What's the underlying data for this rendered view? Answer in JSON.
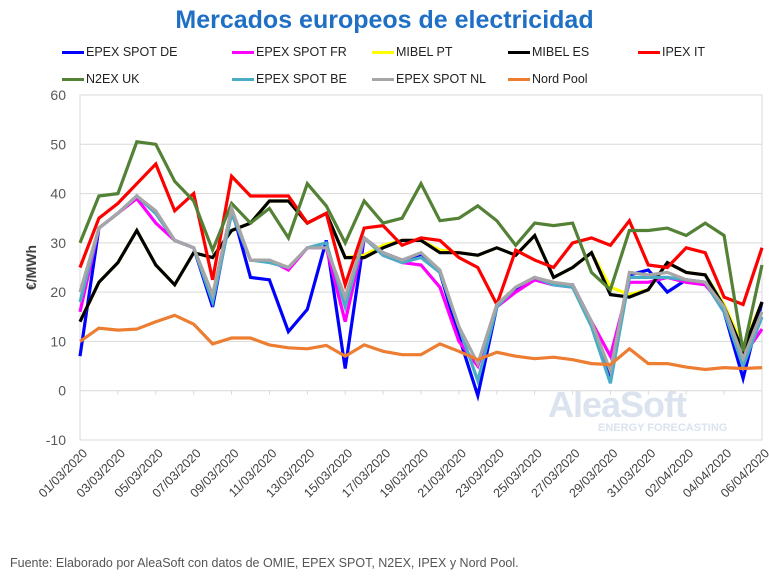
{
  "chart_data": {
    "type": "line",
    "title": "Mercados europeos de electricidad",
    "xlabel": "",
    "ylabel": "€/MWh",
    "ylim": [
      -10,
      60
    ],
    "yticks": [
      "60",
      "50",
      "40",
      "30",
      "20",
      "10",
      "0",
      "-10"
    ],
    "grid": true,
    "legend_position": "top",
    "x": [
      "01/03/2020",
      "02/03/2020",
      "03/03/2020",
      "04/03/2020",
      "05/03/2020",
      "06/03/2020",
      "07/03/2020",
      "08/03/2020",
      "09/03/2020",
      "10/03/2020",
      "11/03/2020",
      "12/03/2020",
      "13/03/2020",
      "14/03/2020",
      "15/03/2020",
      "16/03/2020",
      "17/03/2020",
      "18/03/2020",
      "19/03/2020",
      "20/03/2020",
      "21/03/2020",
      "22/03/2020",
      "23/03/2020",
      "24/03/2020",
      "25/03/2020",
      "26/03/2020",
      "27/03/2020",
      "28/03/2020",
      "29/03/2020",
      "30/03/2020",
      "31/03/2020",
      "01/04/2020",
      "02/04/2020",
      "03/04/2020",
      "04/04/2020",
      "05/04/2020",
      "06/04/2020"
    ],
    "xtick_labels": [
      "01/03/2020",
      "03/03/2020",
      "05/03/2020",
      "07/03/2020",
      "09/03/2020",
      "11/03/2020",
      "13/03/2020",
      "15/03/2020",
      "17/03/2020",
      "19/03/2020",
      "21/03/2020",
      "23/03/2020",
      "25/03/2020",
      "27/03/2020",
      "29/03/2020",
      "31/03/2020",
      "02/04/2020",
      "04/04/2020",
      "06/04/2020"
    ],
    "series": [
      {
        "name": "EPEX SPOT DE",
        "color": "#0000ff",
        "values": [
          7,
          33,
          36,
          39.5,
          36,
          30.5,
          29,
          17,
          37,
          23,
          22.5,
          12,
          16.5,
          30.5,
          4.5,
          31,
          28,
          26.5,
          27.5,
          24,
          11,
          -1,
          17,
          20.5,
          22.5,
          21.5,
          21.5,
          14,
          3,
          23.5,
          24.5,
          20,
          22.5,
          22,
          16,
          2.5,
          18
        ]
      },
      {
        "name": "EPEX SPOT FR",
        "color": "#ff00ff",
        "values": [
          16,
          33,
          36,
          39,
          34,
          30.5,
          29,
          19,
          36,
          26.5,
          26.5,
          24.5,
          29,
          29,
          14,
          31,
          27.5,
          26,
          25.5,
          21,
          10,
          5,
          17,
          20,
          22.5,
          21.5,
          21,
          14,
          7,
          22,
          22,
          23,
          22,
          21.5,
          17,
          7,
          12.5
        ]
      },
      {
        "name": "MIBEL PT",
        "color": "#ffff00",
        "values": [
          14,
          22,
          26,
          32.5,
          25.5,
          21.5,
          28,
          27,
          32.5,
          34,
          38.5,
          38.5,
          34,
          36,
          27,
          27.5,
          29.5,
          30.5,
          30.5,
          28.5,
          28,
          27.5,
          29,
          27.5,
          31.5,
          23,
          25,
          28,
          21,
          19.5,
          20.5,
          26,
          24,
          23.5,
          17.5,
          9,
          18
        ]
      },
      {
        "name": "MIBEL ES",
        "color": "#000000",
        "values": [
          14,
          22,
          26,
          32.5,
          25.5,
          21.5,
          28,
          27,
          32.5,
          34,
          38.5,
          38.5,
          34,
          36,
          27,
          27,
          29,
          30.5,
          30.5,
          28,
          28,
          27.5,
          29,
          27.5,
          31.5,
          23,
          25,
          28,
          19.5,
          19,
          20.5,
          26,
          24,
          23.5,
          17,
          8,
          18
        ]
      },
      {
        "name": "IPEX IT",
        "color": "#ff0000",
        "values": [
          25,
          35,
          38,
          42,
          46,
          36.5,
          40,
          22.5,
          43.5,
          39.5,
          39.5,
          39.5,
          34,
          36,
          21.5,
          33,
          33.5,
          29.5,
          31,
          30.5,
          27,
          25,
          17.5,
          28.5,
          26.5,
          25,
          30,
          31,
          29.5,
          34.5,
          25.5,
          25,
          29,
          28,
          19,
          17.5,
          29
        ]
      },
      {
        "name": "N2EX UK",
        "color": "#538135",
        "values": [
          30,
          39.5,
          40,
          50.5,
          50,
          42.5,
          38.5,
          28.5,
          38,
          34,
          37,
          31,
          42,
          37.5,
          30,
          38.5,
          34,
          35,
          42,
          34.5,
          35,
          37.5,
          34.5,
          29.5,
          34,
          33.5,
          34,
          24,
          20.5,
          32.5,
          32.5,
          33,
          31.5,
          34,
          31.5,
          8,
          25.5
        ]
      },
      {
        "name": "EPEX SPOT BE",
        "color": "#4bacc6",
        "values": [
          18,
          33,
          36,
          39.5,
          36,
          30.5,
          29,
          18,
          36,
          26.5,
          26,
          25,
          29,
          30,
          17,
          31,
          27.5,
          26,
          27,
          24,
          13,
          2,
          17,
          21,
          23,
          21.5,
          21,
          13,
          1.5,
          23,
          23,
          23,
          22.5,
          22,
          16,
          5,
          15
        ]
      },
      {
        "name": "EPEX SPOT NL",
        "color": "#a6a6a6",
        "values": [
          20,
          33,
          36,
          39.5,
          36.5,
          30.5,
          29,
          19.5,
          37,
          26.5,
          26.5,
          25,
          29,
          29,
          19,
          31,
          28,
          26.5,
          28,
          24.5,
          13,
          5.5,
          17.5,
          21,
          23,
          22,
          21.5,
          14,
          4,
          24,
          23.5,
          24,
          22.5,
          22,
          17,
          6.5,
          16
        ]
      },
      {
        "name": "Nord Pool",
        "color": "#ed7d31",
        "values": [
          10,
          12.7,
          12.3,
          12.5,
          14,
          15.3,
          13.5,
          9.5,
          10.7,
          10.7,
          9.3,
          8.7,
          8.5,
          9.2,
          7,
          9.3,
          8,
          7.3,
          7.3,
          9.5,
          8,
          6.3,
          7.8,
          7,
          6.5,
          6.8,
          6.3,
          5.5,
          5.3,
          8.5,
          5.5,
          5.5,
          4.8,
          4.3,
          4.7,
          4.5,
          4.7
        ]
      }
    ]
  },
  "watermark": {
    "brand": "AleaSoft",
    "tagline": "ENERGY FORECASTING"
  },
  "footer": "Fuente: Elaborado por AleaSoft con datos de OMIE, EPEX SPOT, N2EX, IPEX y Nord Pool."
}
